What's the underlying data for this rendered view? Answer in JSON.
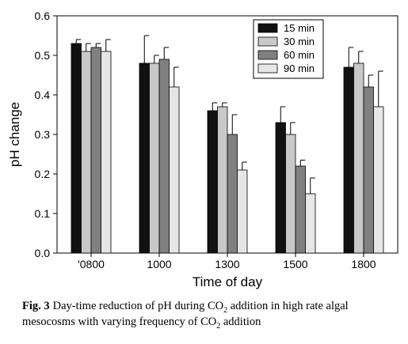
{
  "chart_data": {
    "type": "bar",
    "categories": [
      "'0800",
      "1000",
      "1300",
      "1500",
      "1800"
    ],
    "series": [
      {
        "name": "15 min",
        "color": "#111111",
        "values": [
          0.53,
          0.48,
          0.36,
          0.33,
          0.47
        ],
        "errors": [
          0.01,
          0.07,
          0.02,
          0.04,
          0.05
        ]
      },
      {
        "name": "30 min",
        "color": "#c8c8c8",
        "values": [
          0.51,
          0.48,
          0.37,
          0.3,
          0.48
        ],
        "errors": [
          0.02,
          0.02,
          0.01,
          0.03,
          0.03
        ]
      },
      {
        "name": "60 min",
        "color": "#808080",
        "values": [
          0.52,
          0.49,
          0.3,
          0.22,
          0.42
        ],
        "errors": [
          0.01,
          0.03,
          0.05,
          0.015,
          0.03
        ]
      },
      {
        "name": "90 min",
        "color": "#e6e6e6",
        "values": [
          0.51,
          0.42,
          0.21,
          0.15,
          0.37
        ],
        "errors": [
          0.03,
          0.05,
          0.02,
          0.04,
          0.09
        ]
      }
    ],
    "ylim": [
      0,
      0.6
    ],
    "yticks": [
      "0.0",
      "0.1",
      "0.2",
      "0.3",
      "0.4",
      "0.5",
      "0.6"
    ],
    "xlabel": "Time of day",
    "ylabel": "pH change",
    "legend_position": "top-right",
    "grid": false
  },
  "caption": {
    "label": "Fig. 3",
    "text_before_sub1": "Day-time reduction of pH during CO",
    "sub1": "2",
    "text_after_sub1": " addition in high rate algal mesocosms with varying frequency of CO",
    "sub2": "2",
    "text_after_sub2": " addition"
  }
}
